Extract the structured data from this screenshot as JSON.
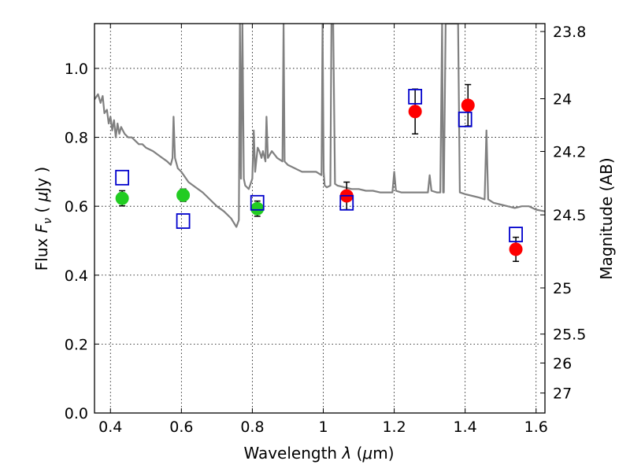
{
  "chart_data": {
    "type": "scatter",
    "xlabel_text": "Wavelength",
    "xlabel_symbol": "λ",
    "xlabel_unit_open": " (",
    "xlabel_unit_mu": "μ",
    "xlabel_unit_close": "m)",
    "ylabel_text": "Flux",
    "ylabel_symbol": "F",
    "ylabel_sub": "ν",
    "ylabel_unit_open": "(",
    "ylabel_unit_mu": "μ",
    "ylabel_unit_close": "Jy )",
    "y2label": "Magnitude (AB)",
    "xlim": [
      0.355,
      1.625
    ],
    "ylim": [
      0.0,
      1.13
    ],
    "grid": true,
    "x_ticks": [
      0.4,
      0.6,
      0.8,
      1.0,
      1.2,
      1.4,
      1.6
    ],
    "x_tick_labels": [
      "0.4",
      "0.6",
      "0.8",
      "1",
      "1.2",
      "1.4",
      "1.6"
    ],
    "y_ticks": [
      0.0,
      0.2,
      0.4,
      0.6,
      0.8,
      1.0
    ],
    "y_tick_labels": [
      "0.0",
      "0.2",
      "0.4",
      "0.6",
      "0.8",
      "1.0"
    ],
    "y2_ticks": [
      {
        "label": "23.8",
        "flux": 1.107
      },
      {
        "label": "24",
        "flux": 0.912
      },
      {
        "label": "24.2",
        "flux": 0.759
      },
      {
        "label": "24.5",
        "flux": 0.575
      },
      {
        "label": "25",
        "flux": 0.363
      },
      {
        "label": "25.5",
        "flux": 0.229
      },
      {
        "label": "26",
        "flux": 0.145
      },
      {
        "label": "27",
        "flux": 0.058
      }
    ],
    "series": [
      {
        "type": "line",
        "color": "#808080",
        "points": [
          [
            0.355,
            0.91
          ],
          [
            0.365,
            0.925
          ],
          [
            0.372,
            0.9
          ],
          [
            0.378,
            0.92
          ],
          [
            0.383,
            0.87
          ],
          [
            0.39,
            0.88
          ],
          [
            0.395,
            0.84
          ],
          [
            0.4,
            0.86
          ],
          [
            0.405,
            0.82
          ],
          [
            0.41,
            0.85
          ],
          [
            0.415,
            0.8
          ],
          [
            0.42,
            0.84
          ],
          [
            0.425,
            0.81
          ],
          [
            0.43,
            0.83
          ],
          [
            0.435,
            0.82
          ],
          [
            0.44,
            0.81
          ],
          [
            0.45,
            0.8
          ],
          [
            0.46,
            0.8
          ],
          [
            0.47,
            0.79
          ],
          [
            0.48,
            0.78
          ],
          [
            0.49,
            0.78
          ],
          [
            0.5,
            0.77
          ],
          [
            0.52,
            0.76
          ],
          [
            0.54,
            0.745
          ],
          [
            0.56,
            0.73
          ],
          [
            0.57,
            0.72
          ],
          [
            0.575,
            0.74
          ],
          [
            0.578,
            0.86
          ],
          [
            0.582,
            0.74
          ],
          [
            0.59,
            0.71
          ],
          [
            0.6,
            0.7
          ],
          [
            0.62,
            0.67
          ],
          [
            0.64,
            0.655
          ],
          [
            0.66,
            0.64
          ],
          [
            0.68,
            0.62
          ],
          [
            0.7,
            0.6
          ],
          [
            0.72,
            0.585
          ],
          [
            0.74,
            0.565
          ],
          [
            0.755,
            0.54
          ],
          [
            0.762,
            0.56
          ],
          [
            0.765,
            1.13
          ],
          [
            0.768,
            0.68
          ],
          [
            0.772,
            1.13
          ],
          [
            0.776,
            0.68
          ],
          [
            0.78,
            0.66
          ],
          [
            0.79,
            0.65
          ],
          [
            0.8,
            0.68
          ],
          [
            0.804,
            0.82
          ],
          [
            0.808,
            0.7
          ],
          [
            0.815,
            0.77
          ],
          [
            0.82,
            0.76
          ],
          [
            0.826,
            0.74
          ],
          [
            0.83,
            0.76
          ],
          [
            0.837,
            0.73
          ],
          [
            0.84,
            0.86
          ],
          [
            0.844,
            0.74
          ],
          [
            0.855,
            0.76
          ],
          [
            0.87,
            0.74
          ],
          [
            0.885,
            0.73
          ],
          [
            0.888,
            1.13
          ],
          [
            0.891,
            0.73
          ],
          [
            0.9,
            0.72
          ],
          [
            0.92,
            0.71
          ],
          [
            0.94,
            0.7
          ],
          [
            0.96,
            0.7
          ],
          [
            0.98,
            0.7
          ],
          [
            0.995,
            0.69
          ],
          [
            0.998,
            1.13
          ],
          [
            1.001,
            0.7
          ],
          [
            1.004,
            0.66
          ],
          [
            1.01,
            0.655
          ],
          [
            1.02,
            0.66
          ],
          [
            1.023,
            1.13
          ],
          [
            1.028,
            1.13
          ],
          [
            1.033,
            0.665
          ],
          [
            1.04,
            0.66
          ],
          [
            1.06,
            0.655
          ],
          [
            1.08,
            0.65
          ],
          [
            1.1,
            0.65
          ],
          [
            1.12,
            0.645
          ],
          [
            1.14,
            0.645
          ],
          [
            1.16,
            0.64
          ],
          [
            1.18,
            0.64
          ],
          [
            1.195,
            0.64
          ],
          [
            1.2,
            0.7
          ],
          [
            1.205,
            0.645
          ],
          [
            1.22,
            0.64
          ],
          [
            1.24,
            0.64
          ],
          [
            1.26,
            0.64
          ],
          [
            1.28,
            0.64
          ],
          [
            1.295,
            0.64
          ],
          [
            1.3,
            0.69
          ],
          [
            1.305,
            0.645
          ],
          [
            1.32,
            0.64
          ],
          [
            1.33,
            0.64
          ],
          [
            1.335,
            1.13
          ],
          [
            1.338,
            0.64
          ],
          [
            1.34,
            0.64
          ],
          [
            1.345,
            1.13
          ],
          [
            1.36,
            1.13
          ],
          [
            1.37,
            1.13
          ],
          [
            1.38,
            1.13
          ],
          [
            1.385,
            0.64
          ],
          [
            1.4,
            0.635
          ],
          [
            1.42,
            0.63
          ],
          [
            1.44,
            0.625
          ],
          [
            1.455,
            0.62
          ],
          [
            1.46,
            0.82
          ],
          [
            1.465,
            0.62
          ],
          [
            1.48,
            0.61
          ],
          [
            1.5,
            0.605
          ],
          [
            1.52,
            0.6
          ],
          [
            1.54,
            0.595
          ],
          [
            1.56,
            0.6
          ],
          [
            1.58,
            0.6
          ],
          [
            1.6,
            0.59
          ],
          [
            1.625,
            0.585
          ]
        ]
      },
      {
        "type": "scatter",
        "marker": "circle",
        "color": "#22cc22",
        "points": [
          [
            0.433,
            0.623
          ],
          [
            0.605,
            0.632
          ],
          [
            0.814,
            0.593
          ]
        ],
        "yerr": [
          0.022,
          0.018,
          0.022
        ]
      },
      {
        "type": "scatter",
        "marker": "circle",
        "color": "#ff0000",
        "points": [
          [
            1.066,
            0.63
          ],
          [
            1.259,
            0.875
          ],
          [
            1.408,
            0.893
          ],
          [
            1.543,
            0.475
          ]
        ],
        "yerr": [
          0.04,
          0.065,
          0.06,
          0.035
        ]
      },
      {
        "type": "scatter",
        "marker": "square-open",
        "color": "#0000cc",
        "points": [
          [
            0.433,
            0.683
          ],
          [
            0.605,
            0.557
          ],
          [
            0.814,
            0.61
          ],
          [
            1.066,
            0.61
          ],
          [
            1.259,
            0.918
          ],
          [
            1.4,
            0.852
          ],
          [
            1.543,
            0.518
          ]
        ]
      }
    ]
  }
}
